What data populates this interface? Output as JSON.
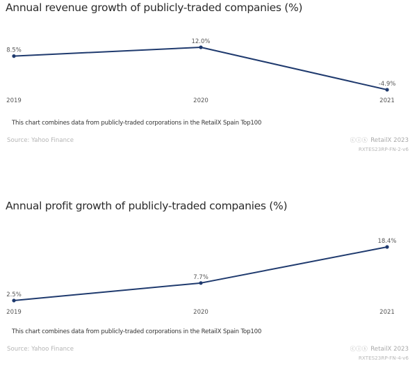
{
  "colors": {
    "line": "#1f3a6e",
    "label": "#555555",
    "tick": "#555555"
  },
  "chart_data": [
    {
      "type": "line",
      "title": "Annual revenue growth of publicly-traded companies (%)",
      "xlabel": "",
      "ylabel": "",
      "categories": [
        "2019",
        "2020",
        "2021"
      ],
      "series": [
        {
          "name": "Annual revenue growth (%)",
          "values": [
            8.5,
            12.0,
            -4.9
          ]
        }
      ],
      "data_labels": [
        "8.5%",
        "12.0%",
        "-4.9%"
      ],
      "grid": false,
      "legend": "none",
      "note": "This chart combines data from publicly-traded corporations in the RetailX Spain Top100",
      "source": "Source: Yahoo Finance",
      "license_icon": "creative-commons-by-nc-icon",
      "brand": "RetailX 2023",
      "code": "RXTES23RP-FN-2-v6"
    },
    {
      "type": "line",
      "title": "Annual profit growth of publicly-traded companies (%)",
      "xlabel": "",
      "ylabel": "",
      "categories": [
        "2019",
        "2020",
        "2021"
      ],
      "series": [
        {
          "name": "Annual profit growth (%)",
          "values": [
            2.5,
            7.7,
            18.4
          ]
        }
      ],
      "data_labels": [
        "2.5%",
        "7.7%",
        "18.4%"
      ],
      "grid": false,
      "legend": "none",
      "note": "This chart combines data from publicly-traded corporations in the RetailX Spain Top100",
      "source": "Source: Yahoo Finance",
      "license_icon": "creative-commons-by-nc-icon",
      "brand": "RetailX 2023",
      "code": "RXTES23RP-FN-4-v6"
    }
  ]
}
